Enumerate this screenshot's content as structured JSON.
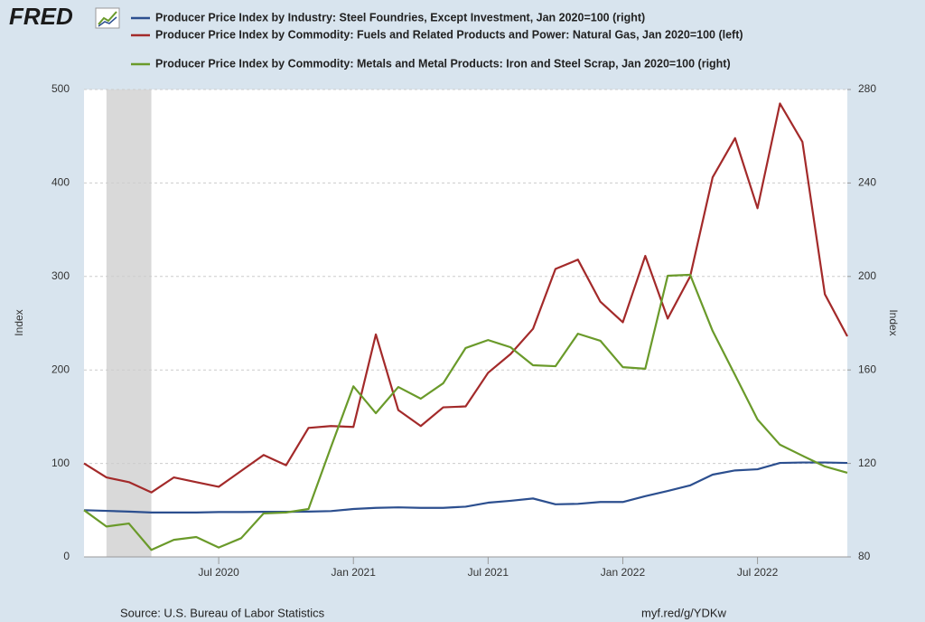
{
  "chart_data": {
    "type": "line",
    "logo": "FRED",
    "source": "Source: U.S. Bureau of Labor Statistics",
    "link": "myf.red/g/YDKw",
    "ylabel": "Index",
    "y2label": "Index",
    "x": [
      "2020-01",
      "2020-02",
      "2020-03",
      "2020-04",
      "2020-05",
      "2020-06",
      "2020-07",
      "2020-08",
      "2020-09",
      "2020-10",
      "2020-11",
      "2020-12",
      "2021-01",
      "2021-02",
      "2021-03",
      "2021-04",
      "2021-05",
      "2021-06",
      "2021-07",
      "2021-08",
      "2021-09",
      "2021-10",
      "2021-11",
      "2021-12",
      "2022-01",
      "2022-02",
      "2022-03",
      "2022-04",
      "2022-05",
      "2022-06",
      "2022-07",
      "2022-08",
      "2022-09",
      "2022-10",
      "2022-11"
    ],
    "xlim": [
      "2020-01",
      "2022-11"
    ],
    "xticks": [
      {
        "value": "2020-07",
        "label": "Jul 2020"
      },
      {
        "value": "2021-01",
        "label": "Jan 2021"
      },
      {
        "value": "2021-07",
        "label": "Jul 2021"
      },
      {
        "value": "2022-01",
        "label": "Jan 2022"
      },
      {
        "value": "2022-07",
        "label": "Jul 2022"
      }
    ],
    "ylim": [
      0,
      500
    ],
    "yticks": [
      0,
      100,
      200,
      300,
      400,
      500
    ],
    "y2lim": [
      80,
      280
    ],
    "y2ticks": [
      80,
      120,
      160,
      200,
      240,
      280
    ],
    "grid": true,
    "recessions": [
      {
        "start": "2020-02",
        "end": "2020-04"
      }
    ],
    "series": [
      {
        "name": "Producer Price Index by Industry: Steel Foundries, Except Investment, Jan 2020=100 (right)",
        "color": "#2c4f8f",
        "axis": "y2",
        "values": [
          100,
          99.7,
          99.4,
          99,
          99,
          99,
          99.2,
          99.2,
          99.3,
          99.3,
          99.4,
          99.6,
          100.5,
          101,
          101.2,
          101,
          101,
          101.5,
          103.2,
          104,
          105,
          102.5,
          102.7,
          103.5,
          103.5,
          106,
          108.2,
          110.6,
          115.2,
          117,
          117.5,
          120.2,
          120.4,
          120.4,
          120.2
        ]
      },
      {
        "name": "Producer Price Index by Commodity: Fuels and Related Products and Power: Natural Gas, Jan 2020=100 (left)",
        "color": "#a32a2a",
        "axis": "y",
        "values": [
          100,
          85,
          80,
          69,
          85,
          80,
          75,
          92,
          109,
          98,
          138,
          140,
          139,
          238,
          157,
          140,
          160,
          161,
          197,
          217,
          244,
          308,
          318,
          273,
          251,
          322,
          255,
          300,
          406,
          448,
          373,
          485,
          444,
          281,
          236
        ]
      },
      {
        "name": "Producer Price Index by Commodity: Metals and Metal Products: Iron and Steel Scrap, Jan 2020=100 (right)",
        "color": "#6a9a2a",
        "axis": "y2",
        "values": [
          100,
          93,
          94.3,
          83,
          87.3,
          88.5,
          84,
          88,
          98.6,
          99,
          100.5,
          127,
          153,
          141.5,
          152.7,
          147.7,
          154.3,
          169.4,
          172.8,
          169.7,
          162,
          161.6,
          175.5,
          172.5,
          161.2,
          160.5,
          200.3,
          200.7,
          176.7,
          157.8,
          138.8,
          128,
          123.3,
          118.7,
          116
        ]
      }
    ]
  }
}
